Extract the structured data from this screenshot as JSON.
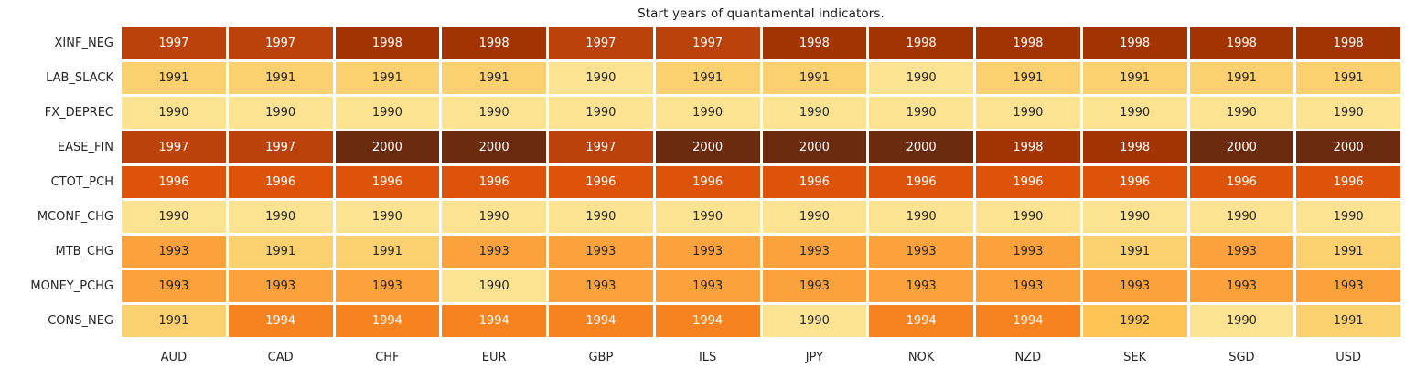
{
  "chart_data": {
    "type": "heatmap",
    "title": "Start years of quantamental indicators.",
    "xlabel": "",
    "ylabel": "",
    "legend": "none",
    "grid": "off",
    "value_range": [
      1990,
      2000
    ],
    "columns": [
      "AUD",
      "CAD",
      "CHF",
      "EUR",
      "GBP",
      "ILS",
      "JPY",
      "NOK",
      "NZD",
      "SEK",
      "SGD",
      "USD"
    ],
    "rows": [
      "XINF_NEG",
      "LAB_SLACK",
      "FX_DEPREC",
      "EASE_FIN",
      "CTOT_PCH",
      "MCONF_CHG",
      "MTB_CHG",
      "MONEY_PCHG",
      "CONS_NEG"
    ],
    "values": [
      [
        1997,
        1997,
        1998,
        1998,
        1997,
        1997,
        1998,
        1998,
        1998,
        1998,
        1998,
        1998
      ],
      [
        1991,
        1991,
        1991,
        1991,
        1990,
        1991,
        1991,
        1990,
        1991,
        1991,
        1991,
        1991
      ],
      [
        1990,
        1990,
        1990,
        1990,
        1990,
        1990,
        1990,
        1990,
        1990,
        1990,
        1990,
        1990
      ],
      [
        1997,
        1997,
        2000,
        2000,
        1997,
        2000,
        2000,
        2000,
        1998,
        1998,
        2000,
        2000
      ],
      [
        1996,
        1996,
        1996,
        1996,
        1996,
        1996,
        1996,
        1996,
        1996,
        1996,
        1996,
        1996
      ],
      [
        1990,
        1990,
        1990,
        1990,
        1990,
        1990,
        1990,
        1990,
        1990,
        1990,
        1990,
        1990
      ],
      [
        1993,
        1991,
        1991,
        1993,
        1993,
        1993,
        1993,
        1993,
        1993,
        1991,
        1993,
        1991
      ],
      [
        1993,
        1993,
        1993,
        1990,
        1993,
        1993,
        1993,
        1993,
        1993,
        1993,
        1993,
        1993
      ],
      [
        1991,
        1994,
        1994,
        1994,
        1994,
        1994,
        1990,
        1994,
        1994,
        1992,
        1990,
        1991
      ]
    ],
    "color_scale": {
      "1990": {
        "bg": "#fbe392",
        "fg": "#262626"
      },
      "1991": {
        "bg": "#fbd06e",
        "fg": "#262626"
      },
      "1992": {
        "bg": "#fdc355",
        "fg": "#262626"
      },
      "1993": {
        "bg": "#fca23d",
        "fg": "#262626"
      },
      "1994": {
        "bg": "#f6831f",
        "fg": "#ffffff"
      },
      "1996": {
        "bg": "#dc5309",
        "fg": "#ffffff"
      },
      "1997": {
        "bg": "#bc420c",
        "fg": "#ffffff"
      },
      "1998": {
        "bg": "#a23403",
        "fg": "#ffffff"
      },
      "2000": {
        "bg": "#6c2b0f",
        "fg": "#ffffff"
      }
    }
  }
}
